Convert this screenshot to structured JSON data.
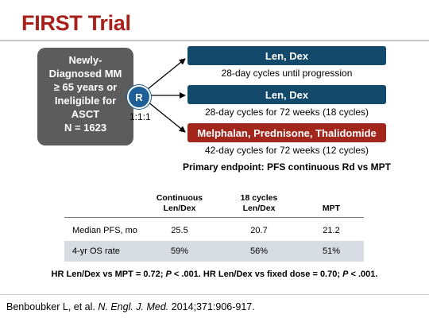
{
  "title": "FIRST Trial",
  "population": {
    "lines": [
      "Newly-",
      "Diagnosed MM",
      "≥ 65 years or",
      "Ineligible for",
      "ASCT",
      "N = 1623"
    ]
  },
  "randomization": {
    "symbol": "R",
    "ratio": "1:1:1"
  },
  "arms": [
    {
      "label": "Len, Dex",
      "schedule": "28-day cycles until progression",
      "color": "#13496b"
    },
    {
      "label": "Len, Dex",
      "schedule": "28-day cycles for 72 weeks (18 cycles)",
      "color": "#13496b"
    },
    {
      "label": "Melphalan, Prednisone, Thalidomide",
      "schedule": "42-day cycles for 72 weeks (12 cycles)",
      "color": "#a3261d"
    }
  ],
  "primary_endpoint": "Primary endpoint: PFS continuous Rd vs MPT",
  "table": {
    "headers": [
      {
        "line1": "Continuous",
        "line2": "Len/Dex"
      },
      {
        "line1": "18 cycles",
        "line2": "Len/Dex"
      },
      {
        "line1": "",
        "line2": "MPT"
      }
    ],
    "rows": [
      {
        "label": "Median PFS, mo",
        "values": [
          "25.5",
          "20.7",
          "21.2"
        ]
      },
      {
        "label": "4-yr OS rate",
        "values": [
          "59%",
          "56%",
          "51%"
        ]
      }
    ]
  },
  "footnote": {
    "part1": "HR Len/Dex vs MPT = 0.72; ",
    "p1": "P",
    "part2": " < .001. HR Len/Dex vs fixed dose = 0.70; ",
    "p2": "P",
    "part3": " < .001."
  },
  "citation": {
    "authors": "Benboubker L, et al. ",
    "journal": "N. Engl. J. Med.",
    "details": " 2014;371:906-917."
  }
}
